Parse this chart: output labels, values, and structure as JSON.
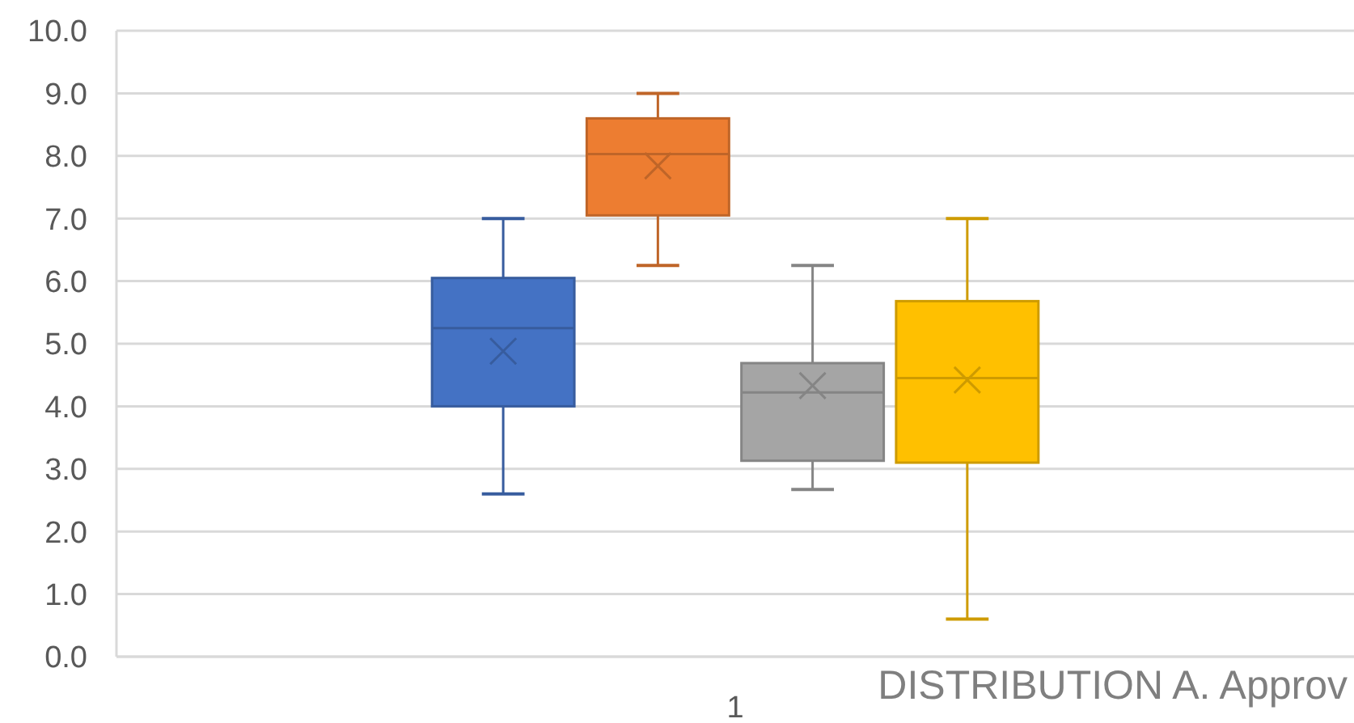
{
  "chart_data": {
    "type": "box",
    "categories": [
      "1"
    ],
    "ylim": [
      0,
      10
    ],
    "yticks": [
      {
        "value": 0,
        "label": "0.0"
      },
      {
        "value": 1,
        "label": "1.0"
      },
      {
        "value": 2,
        "label": "2.0"
      },
      {
        "value": 3,
        "label": "3.0"
      },
      {
        "value": 4,
        "label": "4.0"
      },
      {
        "value": 5,
        "label": "5.0"
      },
      {
        "value": 6,
        "label": "6.0"
      },
      {
        "value": 7,
        "label": "7.0"
      },
      {
        "value": 8,
        "label": "8.0"
      },
      {
        "value": 9,
        "label": "9.0"
      },
      {
        "value": 10,
        "label": "10.0"
      }
    ],
    "grid": "y",
    "annotations": [
      "DISTRIBUTION A. Approv"
    ],
    "series": [
      {
        "color": "#4472c4",
        "boxes": [
          {
            "low": 2.6,
            "q1": 4.0,
            "median": 5.25,
            "q3": 6.05,
            "high": 7.0,
            "mean": 4.88
          }
        ]
      },
      {
        "color": "#ed7d31",
        "boxes": [
          {
            "low": 6.25,
            "q1": 7.05,
            "median": 8.03,
            "q3": 8.6,
            "high": 9.0,
            "mean": 7.84
          }
        ]
      },
      {
        "color": "#a5a5a5",
        "boxes": [
          {
            "low": 2.67,
            "q1": 3.13,
            "median": 4.22,
            "q3": 4.69,
            "high": 6.25,
            "mean": 4.33
          }
        ]
      },
      {
        "color": "#ffc000",
        "boxes": [
          {
            "low": 0.6,
            "q1": 3.1,
            "median": 4.45,
            "q3": 5.68,
            "high": 7.0,
            "mean": 4.42
          }
        ]
      }
    ]
  }
}
